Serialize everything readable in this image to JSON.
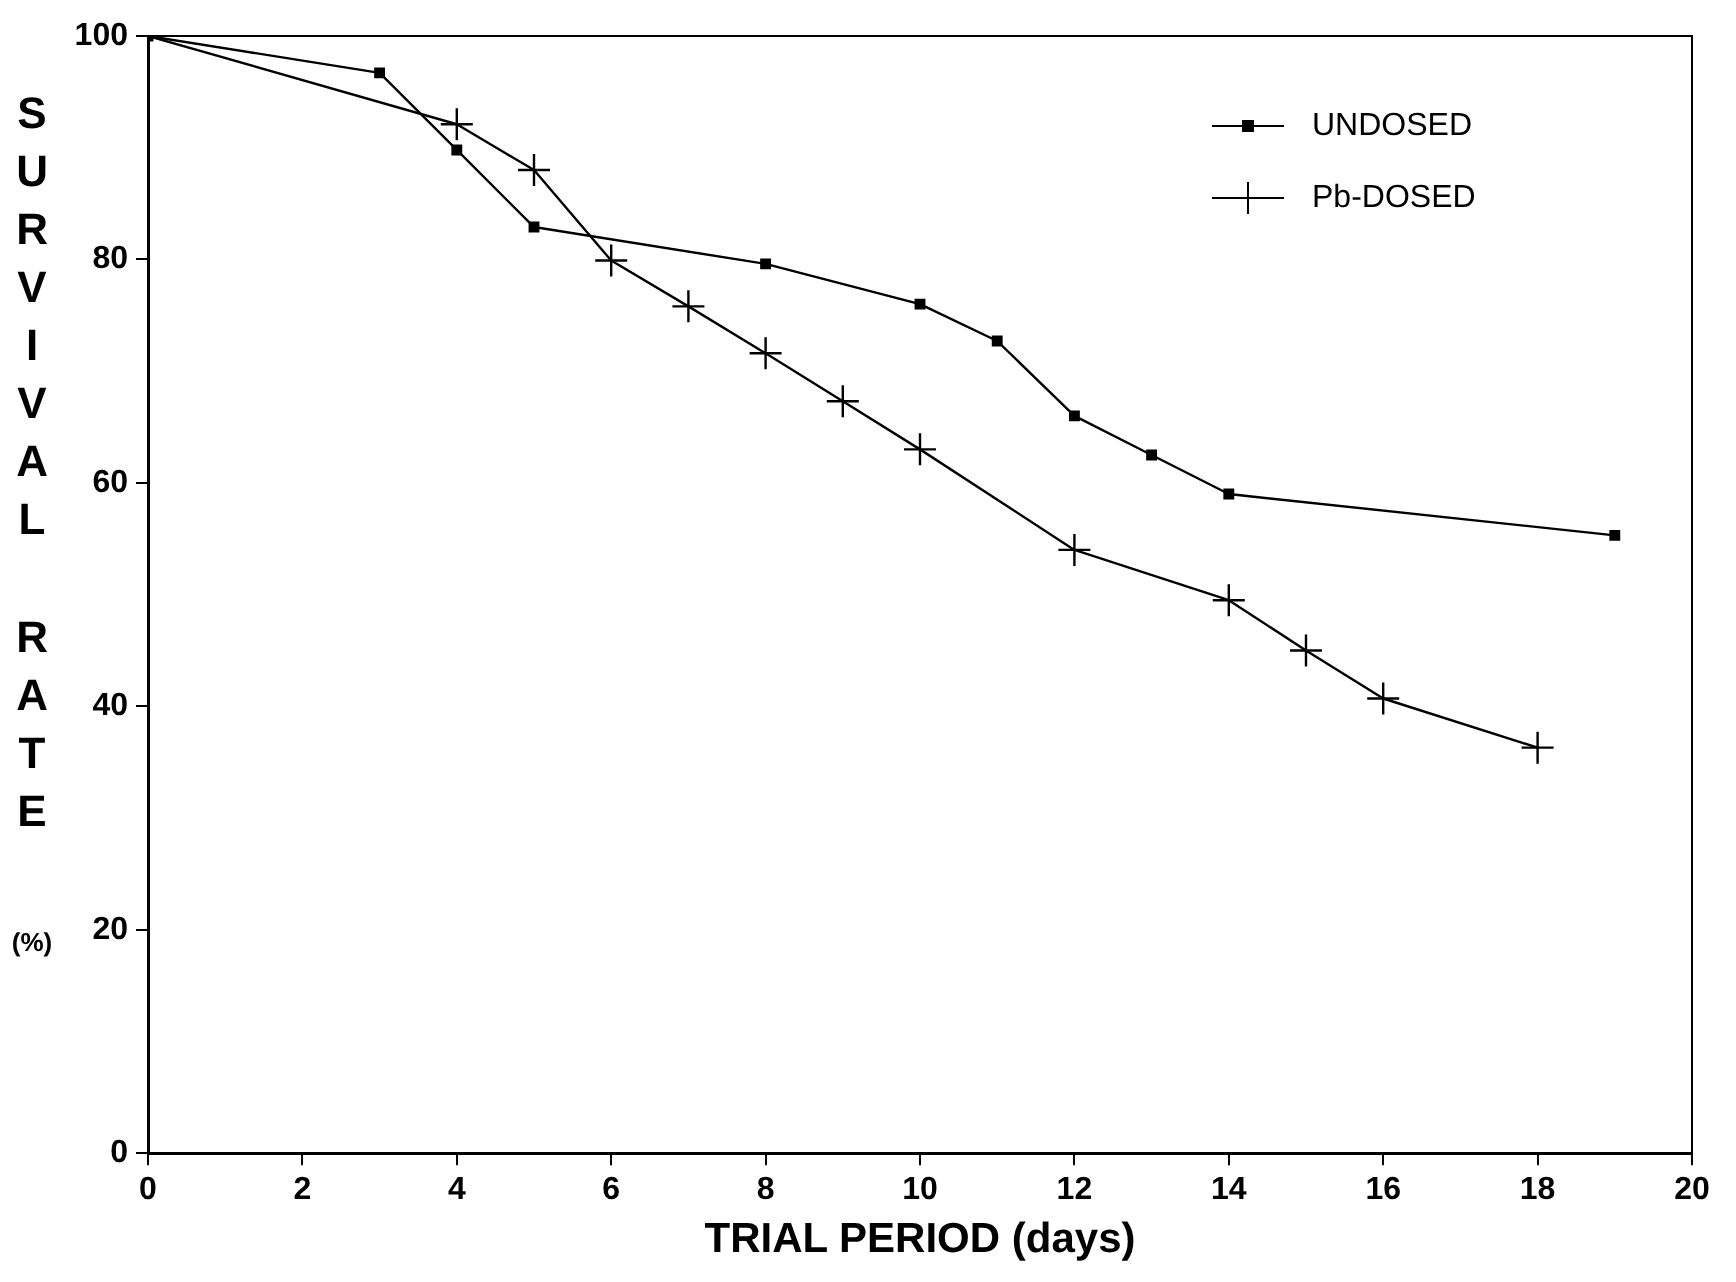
{
  "chart_data": {
    "type": "line",
    "xlabel": "TRIAL PERIOD (days)",
    "ylabel": "SURVIVAL RATE (%)",
    "xlim": [
      0,
      20
    ],
    "xticks": [
      0,
      2,
      4,
      6,
      8,
      10,
      12,
      14,
      16,
      18,
      20
    ],
    "ylim": [
      0,
      100
    ],
    "yticks": [
      0,
      20,
      40,
      60,
      80,
      100
    ],
    "grid": false,
    "legend": "top right",
    "line_style": "solid",
    "series": [
      {
        "name": "UNDOSED",
        "color": "#000000",
        "marker": "square",
        "x": [
          0,
          3,
          4,
          5,
          8,
          10,
          11,
          12,
          13,
          14,
          19
        ],
        "values": [
          100,
          96.7,
          89.8,
          82.9,
          79.6,
          76,
          72.7,
          66,
          62.5,
          59,
          55.3
        ]
      },
      {
        "name": "Pb-DOSED",
        "color": "#000000",
        "marker": "cross",
        "x": [
          0,
          4,
          5,
          6,
          7,
          8,
          9,
          10,
          12,
          14,
          15,
          16,
          18
        ],
        "values": [
          100,
          92.1,
          88,
          79.9,
          75.8,
          71.6,
          67.3,
          63,
          54,
          49.5,
          45,
          40.7,
          36.3
        ]
      }
    ]
  }
}
